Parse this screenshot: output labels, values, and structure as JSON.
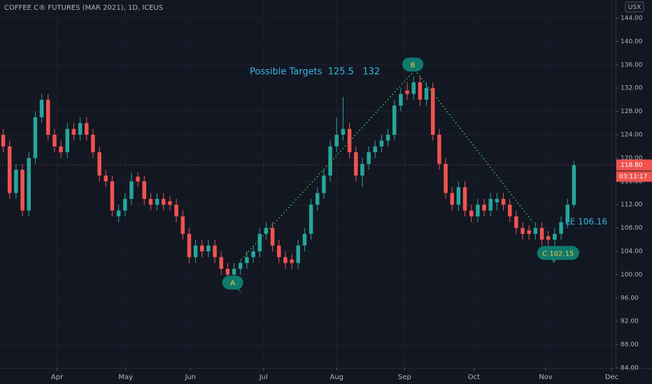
{
  "chart_data": {
    "type": "candlestick",
    "title": "COFFEE C® FUTURES (MAR 2021), 1D, ICEUS",
    "currency": "USX",
    "x": [
      0.5,
      1.5,
      2.5,
      3.5,
      4.5,
      5.5,
      6.5,
      7.5,
      8.5,
      9.5,
      10.5,
      11.5,
      12.5,
      13.5,
      14.5,
      15.5,
      16.5,
      17.5,
      18.5,
      19.5,
      20.5,
      21.5,
      22.5,
      23.5,
      24.5,
      25.5,
      26.5,
      27.5,
      28.5,
      29.5,
      30.5,
      31.5,
      32.5,
      33.5,
      34.5,
      35.5,
      36.5,
      37.5,
      38.5,
      39.5,
      40.5,
      41.5,
      42.5,
      43.5,
      44.5,
      45.5,
      46.5,
      47.5,
      48.5,
      49.5,
      50.5,
      51.5,
      52.5,
      53.5,
      54.5,
      55.5,
      56.5,
      57.5,
      58.5,
      59.5,
      60.5,
      61.5,
      62.5,
      63.5,
      64.5,
      65.5,
      66.5,
      67.5,
      68.5,
      69.5,
      70.5,
      71.5,
      72.5,
      73.5,
      74.5,
      75.5,
      76.5,
      77.5,
      78.5,
      79.5,
      80.5,
      81.5,
      82.5,
      83.5,
      84.5,
      85.5,
      86.5,
      87.5,
      88.5,
      89.5
    ],
    "open": [
      124,
      122,
      114,
      118,
      111,
      120,
      127,
      130,
      124,
      122,
      121,
      125,
      124,
      126,
      124,
      121,
      117,
      116,
      110,
      111,
      113,
      116.8,
      116,
      113,
      112,
      113,
      112.6,
      112,
      110,
      107,
      103,
      105,
      104,
      105,
      103,
      101,
      100,
      101,
      102,
      103,
      104,
      107,
      108,
      105,
      103,
      102.6,
      102,
      105,
      107,
      112,
      114,
      117,
      122,
      124,
      125,
      121,
      117,
      119,
      121,
      122,
      123,
      124,
      129,
      131.6,
      131,
      133,
      130,
      132,
      124,
      119,
      114,
      112,
      115,
      111,
      110,
      112,
      111,
      112.4,
      113,
      112,
      110,
      108,
      107.6,
      107,
      108,
      106.6,
      106,
      107,
      109,
      112
    ],
    "high": [
      125,
      123,
      119,
      119,
      121,
      128,
      131,
      131,
      125,
      123,
      126,
      126,
      127,
      127,
      125,
      122,
      118,
      117,
      112,
      114,
      117.5,
      117.5,
      117,
      114,
      114,
      114,
      113.5,
      113,
      111,
      108,
      106,
      106,
      106,
      106,
      104,
      102,
      102,
      102.5,
      104,
      105,
      108,
      109,
      109,
      106,
      104,
      103.5,
      106,
      108,
      113,
      115,
      118,
      123,
      127,
      130.5,
      126,
      122,
      120,
      122,
      123,
      124,
      125,
      130,
      132,
      133,
      134,
      134,
      133,
      133,
      125,
      120,
      115,
      116,
      116,
      112,
      113,
      113,
      114,
      114,
      114,
      113,
      111,
      109,
      108.5,
      109,
      109,
      107.5,
      108,
      110,
      113,
      119.5
    ],
    "low": [
      121,
      113,
      113,
      110,
      110,
      119,
      126,
      123,
      121,
      120,
      120,
      123,
      123,
      123,
      120,
      116,
      115,
      110,
      109,
      110,
      112,
      115,
      112,
      111,
      111,
      111,
      111,
      109,
      106,
      102,
      102,
      103,
      103,
      102,
      100,
      99,
      99,
      100,
      101,
      102,
      103,
      106,
      104,
      102,
      101,
      101,
      101,
      104,
      106,
      111,
      113,
      116,
      121,
      123,
      120,
      116,
      115,
      118,
      120,
      121,
      122,
      123,
      128,
      130,
      130,
      129,
      129,
      123,
      118,
      113,
      111,
      111,
      110,
      109,
      109,
      110,
      110,
      111,
      111,
      109,
      107,
      106,
      106,
      106,
      105,
      105,
      105,
      106,
      108,
      111.5
    ],
    "close": [
      122,
      114,
      118,
      111,
      120,
      127,
      130,
      124,
      122,
      121,
      125,
      124,
      126,
      124,
      121,
      117,
      116,
      111,
      111,
      113,
      116,
      116,
      113,
      112,
      113,
      112,
      112,
      110,
      107,
      103,
      105,
      104,
      105,
      103,
      101,
      100,
      101,
      102,
      103,
      104,
      107,
      108,
      105,
      103,
      102,
      102,
      105,
      107,
      112,
      114,
      117,
      122,
      124,
      125,
      121,
      117,
      119,
      121,
      122,
      123,
      124,
      129,
      131,
      131,
      133,
      130,
      132,
      124,
      119,
      114,
      112,
      115,
      111,
      110,
      112,
      111,
      113,
      113,
      112,
      110,
      108,
      107,
      107,
      108,
      106,
      106,
      107,
      109,
      112,
      118.8
    ],
    "up_color": "#26a69a",
    "down_color": "#ef5350",
    "xlim": [
      0,
      96
    ],
    "xticks": [
      {
        "value": 8.9,
        "label": "Apr"
      },
      {
        "value": 19.6,
        "label": "May"
      },
      {
        "value": 29.7,
        "label": "Jun"
      },
      {
        "value": 41.1,
        "label": "Jul"
      },
      {
        "value": 52.5,
        "label": "Aug"
      },
      {
        "value": 63.1,
        "label": "Sep"
      },
      {
        "value": 73.9,
        "label": "Oct"
      },
      {
        "value": 85.1,
        "label": "Nov"
      },
      {
        "value": 95.4,
        "label": "Dec"
      }
    ],
    "ylim": [
      84,
      144
    ],
    "yticks": [
      {
        "value": 84,
        "label": "84.00"
      },
      {
        "value": 88,
        "label": "88.00"
      },
      {
        "value": 92,
        "label": "92.00"
      },
      {
        "value": 96,
        "label": "96.00"
      },
      {
        "value": 100,
        "label": "100.00"
      },
      {
        "value": 104,
        "label": "104.00"
      },
      {
        "value": 108,
        "label": "108.00"
      },
      {
        "value": 112,
        "label": "112.00"
      },
      {
        "value": 116,
        "label": "116.00"
      },
      {
        "value": 120,
        "label": "120.00"
      },
      {
        "value": 124,
        "label": "124.00"
      },
      {
        "value": 128,
        "label": "128.00"
      },
      {
        "value": 132,
        "label": "132.00"
      },
      {
        "value": 136,
        "label": "136.00"
      },
      {
        "value": 140,
        "label": "140.00"
      },
      {
        "value": 144,
        "label": "144.00"
      }
    ],
    "grid": true,
    "last_price": {
      "value": 118.8,
      "label": "118.80"
    },
    "countdown": "03:11:17",
    "annotations": {
      "targets_text": "Possible Targets  125.5   132",
      "pattern_color": "#2ecc40",
      "pattern": [
        {
          "label": "A",
          "x": 37.6,
          "y": 102.6
        },
        {
          "label": "B",
          "x": 64.7,
          "y": 135.1
        },
        {
          "label": "C 102.15",
          "x": 83.1,
          "y": 109
        }
      ],
      "le_label": "LE 106.16"
    }
  }
}
